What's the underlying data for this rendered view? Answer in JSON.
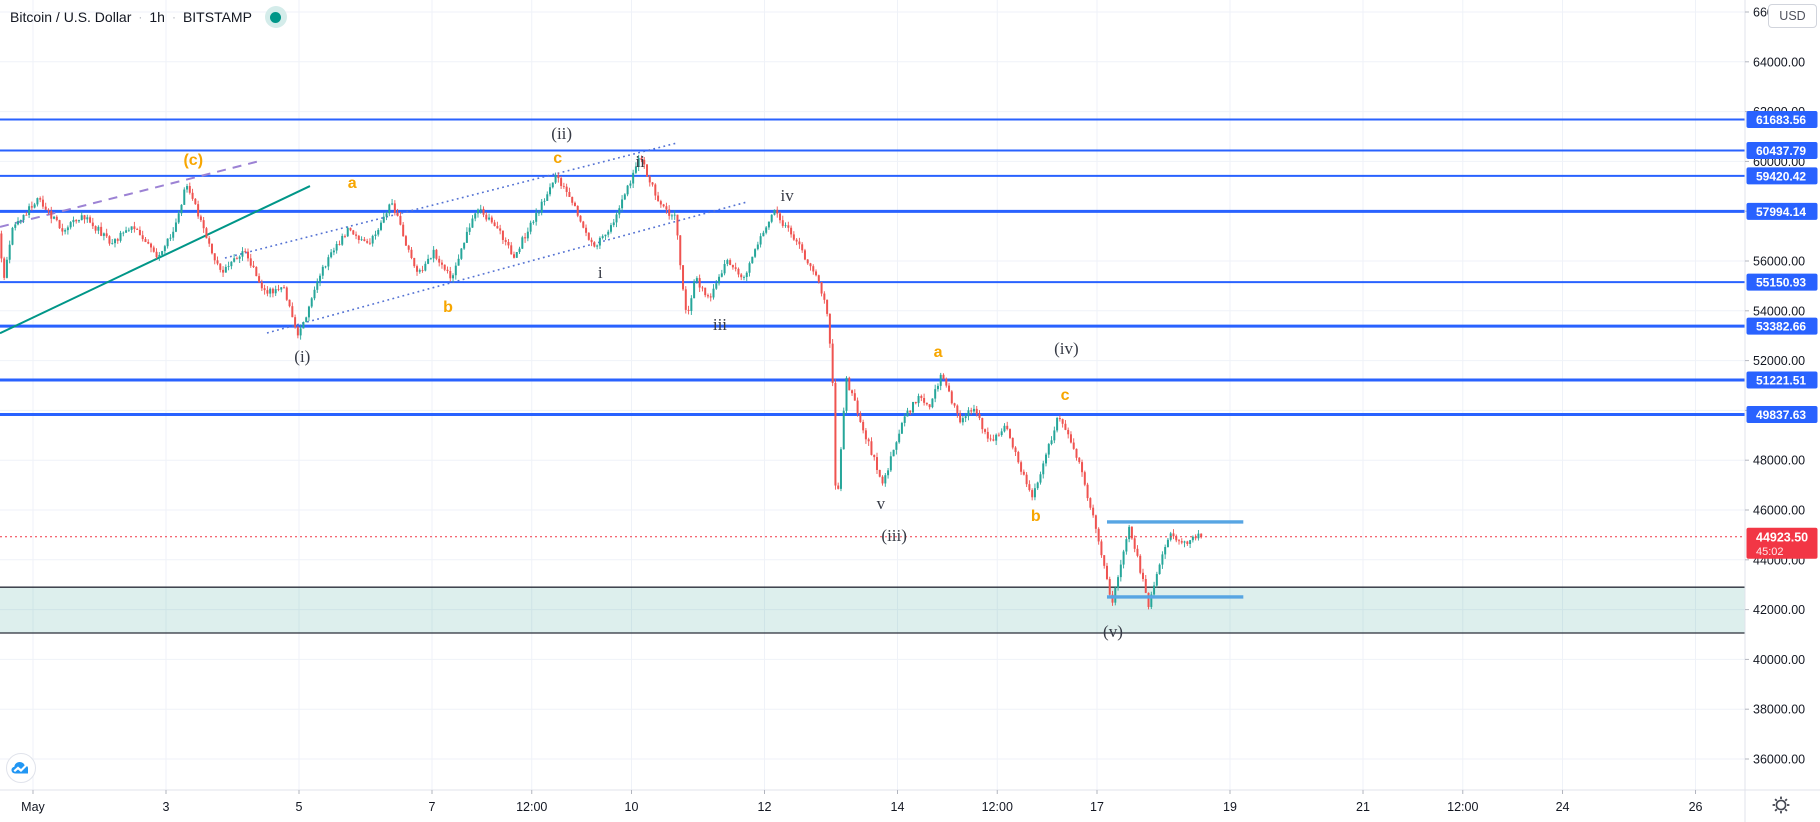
{
  "legend": {
    "symbol": "Bitcoin / U.S. Dollar",
    "separator": "·",
    "interval": "1h",
    "exchange": "BITSTAMP"
  },
  "price_scale": {
    "currency_label": "USD",
    "ticks": [
      {
        "label": "66000.00",
        "price": 66000
      },
      {
        "label": "64000.00",
        "price": 64000
      },
      {
        "label": "62000.00",
        "price": 62000
      },
      {
        "label": "60000.00",
        "price": 60000
      },
      {
        "label": "58000.00",
        "price": 58000
      },
      {
        "label": "56000.00",
        "price": 56000
      },
      {
        "label": "54000.00",
        "price": 54000
      },
      {
        "label": "52000.00",
        "price": 52000
      },
      {
        "label": "50000.00",
        "price": 50000
      },
      {
        "label": "48000.00",
        "price": 48000
      },
      {
        "label": "46000.00",
        "price": 46000
      },
      {
        "label": "44000.00",
        "price": 44000
      },
      {
        "label": "42000.00",
        "price": 42000
      },
      {
        "label": "40000.00",
        "price": 40000
      },
      {
        "label": "38000.00",
        "price": 38000
      },
      {
        "label": "36000.00",
        "price": 36000
      }
    ]
  },
  "time_scale": {
    "ticks": [
      {
        "label": "May",
        "day": 1
      },
      {
        "label": "3",
        "day": 3
      },
      {
        "label": "5",
        "day": 5
      },
      {
        "label": "7",
        "day": 7
      },
      {
        "label": "12:00",
        "day": 8.5
      },
      {
        "label": "10",
        "day": 10
      },
      {
        "label": "12",
        "day": 12
      },
      {
        "label": "14",
        "day": 14
      },
      {
        "label": "12:00",
        "day": 15.5
      },
      {
        "label": "17",
        "day": 17
      },
      {
        "label": "19",
        "day": 19
      },
      {
        "label": "21",
        "day": 21
      },
      {
        "label": "12:00",
        "day": 22.5
      },
      {
        "label": "24",
        "day": 24
      },
      {
        "label": "26",
        "day": 26
      }
    ]
  },
  "current_price_label": {
    "price_text": "44923.50",
    "countdown_text": "45:02"
  },
  "colors": {
    "up": "#26a69a",
    "down": "#ef5350",
    "level_line": "#2962ff",
    "current": "#f23645",
    "grid": "#eff2f8",
    "axis_text": "#131722",
    "separator": "#e0e3eb",
    "tick_dash": "#b2b5be",
    "zone_fill": "#2a9d8f",
    "zone_border": "#2a2e39",
    "trend_teal": "#009688",
    "dashed_purple": "#9c82d4",
    "dotted_blue": "#5472d3",
    "segment_blue": "#57a5e3",
    "wave_black": "#363a45",
    "wave_orange": "#f7a600",
    "logo_blue": "#2196f3"
  },
  "chart_data": {
    "type": "candlestick",
    "title": "Bitcoin / U.S. Dollar · 1h · BITSTAMP",
    "x_unit": "day of May",
    "interval": "1h",
    "x_domain": [
      0.504,
      26.744
    ],
    "y_domain": [
      34755,
      66482
    ],
    "candles": {
      "start_day": 0.504,
      "end_day": 18.55,
      "interval_days": 0.0416667
    },
    "price_path_waypoints": [
      [
        0.5,
        57200
      ],
      [
        0.58,
        55300
      ],
      [
        0.72,
        57300
      ],
      [
        1.1,
        58550
      ],
      [
        1.45,
        57250
      ],
      [
        1.8,
        57800
      ],
      [
        2.2,
        56700
      ],
      [
        2.5,
        57450
      ],
      [
        2.9,
        56200
      ],
      [
        3.1,
        57000
      ],
      [
        3.33,
        59050
      ],
      [
        3.6,
        57200
      ],
      [
        3.85,
        55500
      ],
      [
        4.2,
        56400
      ],
      [
        4.5,
        54700
      ],
      [
        4.8,
        54950
      ],
      [
        5.0,
        52950
      ],
      [
        5.4,
        55800
      ],
      [
        5.75,
        57200
      ],
      [
        6.05,
        56600
      ],
      [
        6.42,
        58350
      ],
      [
        6.8,
        55400
      ],
      [
        7.05,
        56400
      ],
      [
        7.3,
        55250
      ],
      [
        7.7,
        58200
      ],
      [
        8.0,
        57300
      ],
      [
        8.25,
        56200
      ],
      [
        8.9,
        59430
      ],
      [
        9.15,
        58200
      ],
      [
        9.45,
        56550
      ],
      [
        9.75,
        57500
      ],
      [
        10.15,
        60150
      ],
      [
        10.45,
        58200
      ],
      [
        10.68,
        57700
      ],
      [
        10.85,
        53600
      ],
      [
        10.98,
        55300
      ],
      [
        11.2,
        54450
      ],
      [
        11.45,
        55950
      ],
      [
        11.7,
        55300
      ],
      [
        12.15,
        58000
      ],
      [
        12.5,
        56800
      ],
      [
        12.8,
        55300
      ],
      [
        12.95,
        54400
      ],
      [
        13.05,
        51000
      ],
      [
        13.1,
        45650
      ],
      [
        13.25,
        51300
      ],
      [
        13.5,
        49300
      ],
      [
        13.8,
        47000
      ],
      [
        14.1,
        49600
      ],
      [
        14.35,
        50600
      ],
      [
        14.5,
        50100
      ],
      [
        14.68,
        51500
      ],
      [
        14.95,
        49600
      ],
      [
        15.15,
        50100
      ],
      [
        15.4,
        48800
      ],
      [
        15.65,
        49300
      ],
      [
        16.05,
        46450
      ],
      [
        16.45,
        49850
      ],
      [
        16.75,
        47900
      ],
      [
        17.05,
        44800
      ],
      [
        17.25,
        42250
      ],
      [
        17.5,
        45450
      ],
      [
        17.8,
        42150
      ],
      [
        18.1,
        45050
      ],
      [
        18.3,
        44550
      ],
      [
        18.52,
        44923.5
      ]
    ],
    "level_lines": [
      {
        "label": "61683.56",
        "price": 61683.56,
        "weight": 2
      },
      {
        "label": "60437.79",
        "price": 60437.79,
        "weight": 2
      },
      {
        "label": "59420.42",
        "price": 59420.42,
        "weight": 2
      },
      {
        "label": "57994.14",
        "price": 57994.14,
        "weight": 3
      },
      {
        "label": "55150.93",
        "price": 55150.93,
        "weight": 2
      },
      {
        "label": "53382.66",
        "price": 53382.66,
        "weight": 3
      },
      {
        "label": "51221.51",
        "price": 51221.51,
        "weight": 3
      },
      {
        "label": "49837.63",
        "price": 49837.63,
        "weight": 3
      }
    ],
    "current_price": 44923.5,
    "support_zone": {
      "top_price": 42900,
      "bottom_price": 41060
    },
    "horizontal_segments": [
      {
        "price": 45520,
        "day_start": 17.15,
        "day_end": 19.2
      },
      {
        "price": 42510,
        "day_start": 17.15,
        "day_end": 19.2
      }
    ],
    "trendlines": [
      {
        "name": "teal-support-trendline",
        "style": "solid",
        "points": [
          [
            0.504,
            53100
          ],
          [
            5.165,
            59010
          ]
        ]
      },
      {
        "name": "purple-dashed-trendline",
        "style": "dashed",
        "points": [
          [
            0.504,
            57370
          ],
          [
            4.414,
            60020
          ]
        ]
      },
      {
        "name": "channel-upper-dotted",
        "style": "dotted",
        "points": [
          [
            3.887,
            56120
          ],
          [
            10.684,
            60740
          ]
        ]
      },
      {
        "name": "channel-lower-dotted",
        "style": "dotted",
        "points": [
          [
            4.519,
            53110
          ],
          [
            11.737,
            58370
          ]
        ]
      }
    ],
    "wave_labels": [
      {
        "text": "(c)",
        "style": "orange",
        "day": 3.41,
        "price": 60060
      },
      {
        "text": "a",
        "style": "orange",
        "day": 5.8,
        "price": 59130
      },
      {
        "text": "b",
        "style": "orange",
        "day": 7.24,
        "price": 54150
      },
      {
        "text": "(ii)",
        "style": "black",
        "day": 8.95,
        "price": 61100
      },
      {
        "text": "c",
        "style": "orange",
        "day": 8.89,
        "price": 60140
      },
      {
        "text": "i",
        "style": "black",
        "day": 9.53,
        "price": 55520
      },
      {
        "text": "ii",
        "style": "black",
        "day": 10.13,
        "price": 59980
      },
      {
        "text": "iii",
        "style": "black",
        "day": 11.33,
        "price": 53430
      },
      {
        "text": "(i)",
        "style": "black",
        "day": 5.05,
        "price": 52140
      },
      {
        "text": "iv",
        "style": "black",
        "day": 12.34,
        "price": 58610
      },
      {
        "text": "a",
        "style": "orange",
        "day": 14.61,
        "price": 52350
      },
      {
        "text": "(iv)",
        "style": "black",
        "day": 16.54,
        "price": 52470
      },
      {
        "text": "c",
        "style": "orange",
        "day": 16.52,
        "price": 50620
      },
      {
        "text": "v",
        "style": "black",
        "day": 13.75,
        "price": 46240
      },
      {
        "text": "(iii)",
        "style": "black",
        "day": 13.95,
        "price": 44950
      },
      {
        "text": "b",
        "style": "orange",
        "day": 16.08,
        "price": 45760
      },
      {
        "text": "(v)",
        "style": "black",
        "day": 17.24,
        "price": 41100
      }
    ],
    "grid": {
      "x_days": [
        1,
        3,
        5,
        7,
        8.5,
        10,
        12,
        14,
        15.5,
        17,
        19,
        21,
        22.5,
        24,
        26
      ],
      "y_prices": [
        36000,
        38000,
        40000,
        42000,
        44000,
        46000,
        48000,
        50000,
        52000,
        54000,
        56000,
        58000,
        60000,
        62000,
        64000,
        66000
      ]
    }
  }
}
